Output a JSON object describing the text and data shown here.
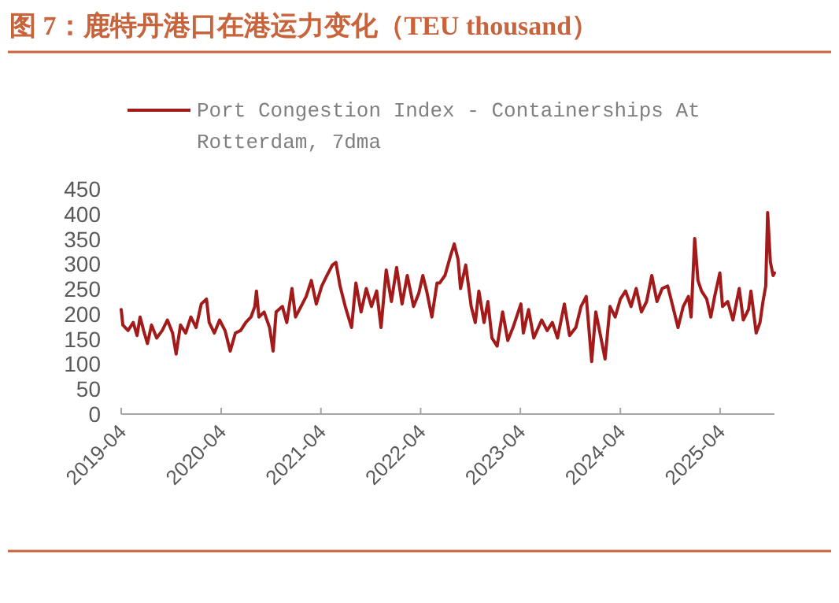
{
  "chart_data": {
    "type": "line",
    "title": "图 7：鹿特丹港口在港运力变化（TEU thousand）",
    "xlim": [
      "2019-04-01",
      "2025-10-17"
    ],
    "xticks": [
      {
        "value": "2019-04-01",
        "label": "2019-04"
      },
      {
        "value": "2020-04-01",
        "label": "2020-04"
      },
      {
        "value": "2021-04-01",
        "label": "2021-04"
      },
      {
        "value": "2022-04-01",
        "label": "2022-04"
      },
      {
        "value": "2023-04-01",
        "label": "2023-04"
      },
      {
        "value": "2024-04-01",
        "label": "2024-04"
      },
      {
        "value": "2025-04-01",
        "label": "2025-04"
      }
    ],
    "ylim": [
      0,
      450
    ],
    "yticks": [
      0,
      50,
      100,
      150,
      200,
      250,
      300,
      350,
      400,
      450
    ],
    "grid": false,
    "legend": "top",
    "line_style": "solid",
    "marker": "none",
    "series": [
      {
        "name": "Port Congestion Index - Containerships At Rotterdam, 7dma",
        "color": "#a31a1a",
        "x": [
          "2019-04-01",
          "2019-04-07",
          "2019-04-26",
          "2019-05-15",
          "2019-05-29",
          "2019-06-09",
          "2019-06-22",
          "2019-07-06",
          "2019-07-21",
          "2019-08-09",
          "2019-08-29",
          "2019-09-17",
          "2019-10-06",
          "2019-10-19",
          "2019-11-04",
          "2019-11-23",
          "2019-12-12",
          "2019-12-31",
          "2020-01-19",
          "2020-02-07",
          "2020-02-17",
          "2020-03-07",
          "2020-03-26",
          "2020-04-15",
          "2020-05-04",
          "2020-05-23",
          "2020-06-11",
          "2020-06-30",
          "2020-07-19",
          "2020-08-02",
          "2020-08-08",
          "2020-08-17",
          "2020-09-05",
          "2020-09-25",
          "2020-10-08",
          "2020-10-19",
          "2020-11-11",
          "2020-11-27",
          "2020-12-16",
          "2020-12-29",
          "2021-01-18",
          "2021-02-06",
          "2021-02-25",
          "2021-03-15",
          "2021-04-04",
          "2021-04-23",
          "2021-05-13",
          "2021-05-26",
          "2021-06-10",
          "2021-06-29",
          "2021-07-22",
          "2021-08-07",
          "2021-08-26",
          "2021-09-14",
          "2021-10-03",
          "2021-10-22",
          "2021-11-07",
          "2021-11-26",
          "2021-12-15",
          "2022-01-03",
          "2022-01-23",
          "2022-02-11",
          "2022-03-06",
          "2022-03-25",
          "2022-04-09",
          "2022-04-23",
          "2022-05-12",
          "2022-05-31",
          "2022-06-10",
          "2022-06-29",
          "2022-07-18",
          "2022-08-02",
          "2022-08-16",
          "2022-08-25",
          "2022-09-13",
          "2022-10-03",
          "2022-10-18",
          "2022-10-31",
          "2022-11-19",
          "2022-12-03",
          "2022-12-18",
          "2023-01-06",
          "2023-01-26",
          "2023-02-14",
          "2023-03-05",
          "2023-04-03",
          "2023-04-12",
          "2023-05-01",
          "2023-05-20",
          "2023-06-18",
          "2023-07-08",
          "2023-07-27",
          "2023-08-15",
          "2023-09-09",
          "2023-09-28",
          "2023-10-21",
          "2023-11-09",
          "2023-11-28",
          "2023-12-18",
          "2024-01-02",
          "2024-01-21",
          "2024-02-05",
          "2024-02-23",
          "2024-03-13",
          "2024-04-01",
          "2024-04-20",
          "2024-05-10",
          "2024-05-29",
          "2024-06-17",
          "2024-07-06",
          "2024-07-25",
          "2024-08-13",
          "2024-09-01",
          "2024-09-21",
          "2024-10-10",
          "2024-10-29",
          "2024-11-17",
          "2024-12-06",
          "2024-12-16",
          "2024-12-29",
          "2025-01-10",
          "2025-01-23",
          "2025-02-11",
          "2025-02-26",
          "2025-03-12",
          "2025-03-31",
          "2025-04-10",
          "2025-04-29",
          "2025-05-18",
          "2025-06-10",
          "2025-06-25",
          "2025-07-14",
          "2025-07-23",
          "2025-08-11",
          "2025-08-25",
          "2025-09-05",
          "2025-09-15",
          "2025-09-22",
          "2025-10-02",
          "2025-10-12",
          "2025-10-17"
        ],
        "values": [
          209,
          178,
          167,
          183,
          157,
          194,
          167,
          141,
          178,
          152,
          167,
          188,
          162,
          120,
          178,
          162,
          194,
          173,
          220,
          230,
          183,
          162,
          188,
          167,
          126,
          162,
          167,
          183,
          194,
          215,
          246,
          194,
          204,
          173,
          126,
          204,
          215,
          183,
          251,
          194,
          215,
          235,
          267,
          220,
          256,
          277,
          298,
          303,
          256,
          215,
          173,
          262,
          204,
          251,
          215,
          246,
          173,
          288,
          225,
          293,
          220,
          277,
          215,
          241,
          277,
          246,
          194,
          262,
          262,
          277,
          314,
          340,
          309,
          251,
          298,
          215,
          183,
          246,
          183,
          225,
          152,
          136,
          204,
          147,
          173,
          220,
          162,
          209,
          152,
          188,
          167,
          183,
          152,
          220,
          157,
          173,
          215,
          235,
          105,
          204,
          152,
          110,
          215,
          194,
          230,
          246,
          215,
          251,
          204,
          225,
          277,
          225,
          251,
          256,
          215,
          173,
          215,
          235,
          194,
          351,
          267,
          246,
          230,
          194,
          235,
          282,
          215,
          225,
          188,
          251,
          188,
          209,
          246,
          162,
          183,
          225,
          256,
          403,
          304,
          277,
          282
        ]
      }
    ]
  }
}
